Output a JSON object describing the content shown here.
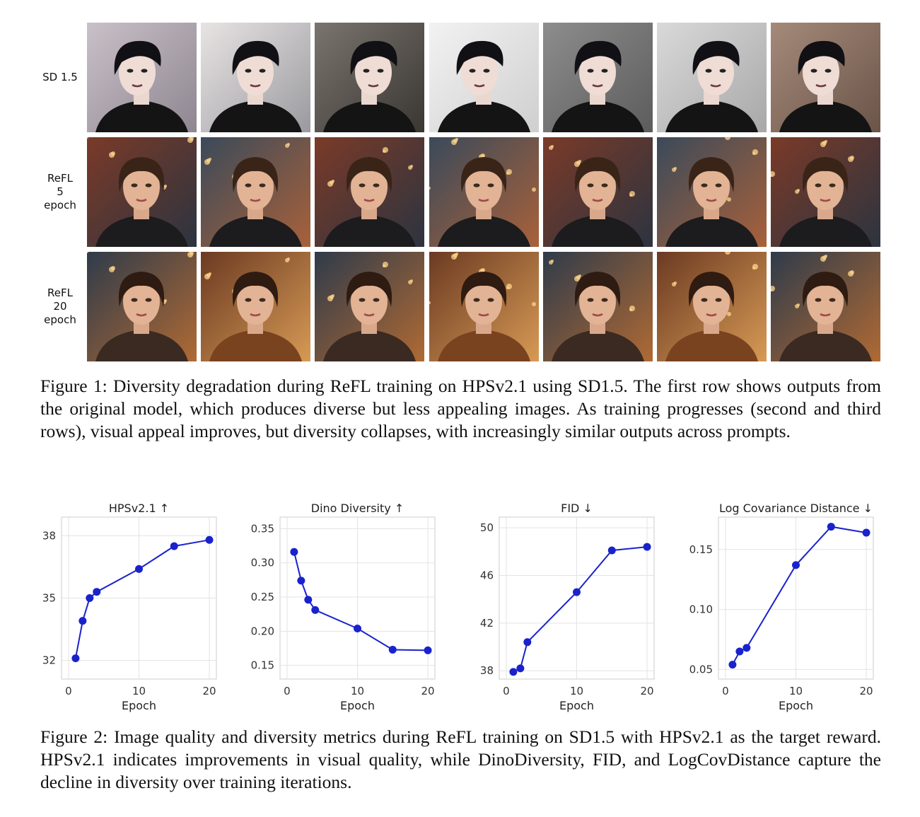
{
  "figure1": {
    "rows": [
      {
        "label": [
          "SD 1.5"
        ],
        "style": "sd15"
      },
      {
        "label": [
          "ReFL",
          "5",
          "epoch"
        ],
        "style": "refl5"
      },
      {
        "label": [
          "ReFL",
          "20",
          "epoch"
        ],
        "style": "refl20"
      }
    ],
    "columns": 7,
    "caption": "Figure 1: Diversity degradation during ReFL training on HPSv2.1 using SD1.5. The first row shows outputs from the original model, which produces diverse but less appealing images. As training progresses (second and third rows), visual appeal improves, but diversity collapses, with increasingly similar outputs across prompts."
  },
  "figure2": {
    "caption": "Figure 2: Image quality and diversity metrics during ReFL training on SD1.5 with HPSv2.1 as the target reward. HPSv2.1 indicates improvements in visual quality, while DinoDiversity, FID, and LogCovDistance capture the decline in diversity over training iterations."
  },
  "chart_data": [
    {
      "type": "line",
      "title": "HPSv2.1 ↑",
      "xlabel": "Epoch",
      "ylabel": "",
      "x": [
        1,
        2,
        3,
        4,
        10,
        15,
        20
      ],
      "values": [
        32.1,
        33.9,
        35.0,
        35.3,
        36.4,
        37.5,
        37.8
      ],
      "xlim": [
        -1,
        21
      ],
      "ylim": [
        31.1,
        38.9
      ],
      "xticks": [
        0,
        10,
        20
      ],
      "yticks": [
        32,
        35,
        38
      ],
      "grid": true,
      "color": "#1a22cc"
    },
    {
      "type": "line",
      "title": "Dino Diversity ↑",
      "xlabel": "Epoch",
      "ylabel": "",
      "x": [
        1,
        2,
        3,
        4,
        10,
        15,
        20
      ],
      "values": [
        0.316,
        0.274,
        0.246,
        0.231,
        0.204,
        0.173,
        0.172
      ],
      "xlim": [
        -1,
        21
      ],
      "ylim": [
        0.13,
        0.367
      ],
      "xticks": [
        0,
        10,
        20
      ],
      "yticks": [
        0.15,
        0.2,
        0.25,
        0.3,
        0.35
      ],
      "grid": true,
      "color": "#1a22cc"
    },
    {
      "type": "line",
      "title": "FID ↓",
      "xlabel": "Epoch",
      "ylabel": "",
      "x": [
        1,
        2,
        3,
        4,
        10,
        15,
        20
      ],
      "values": [
        37.9,
        38.2,
        40.4,
        null,
        44.6,
        48.1,
        48.4
      ],
      "xlim": [
        -1,
        21
      ],
      "ylim": [
        37.3,
        50.9
      ],
      "xticks": [
        0,
        10,
        20
      ],
      "yticks": [
        38,
        42,
        46,
        50
      ],
      "grid": true,
      "color": "#1a22cc"
    },
    {
      "type": "line",
      "title": "Log Covariance Distance ↓",
      "xlabel": "Epoch",
      "ylabel": "",
      "x": [
        1,
        2,
        3,
        4,
        10,
        15,
        20
      ],
      "values": [
        0.054,
        0.065,
        0.068,
        null,
        0.137,
        0.169,
        0.164
      ],
      "xlim": [
        -1,
        21
      ],
      "ylim": [
        0.042,
        0.177
      ],
      "xticks": [
        0,
        10,
        20
      ],
      "yticks": [
        0.05,
        0.1,
        0.15
      ],
      "grid": true,
      "color": "#1a22cc"
    }
  ]
}
